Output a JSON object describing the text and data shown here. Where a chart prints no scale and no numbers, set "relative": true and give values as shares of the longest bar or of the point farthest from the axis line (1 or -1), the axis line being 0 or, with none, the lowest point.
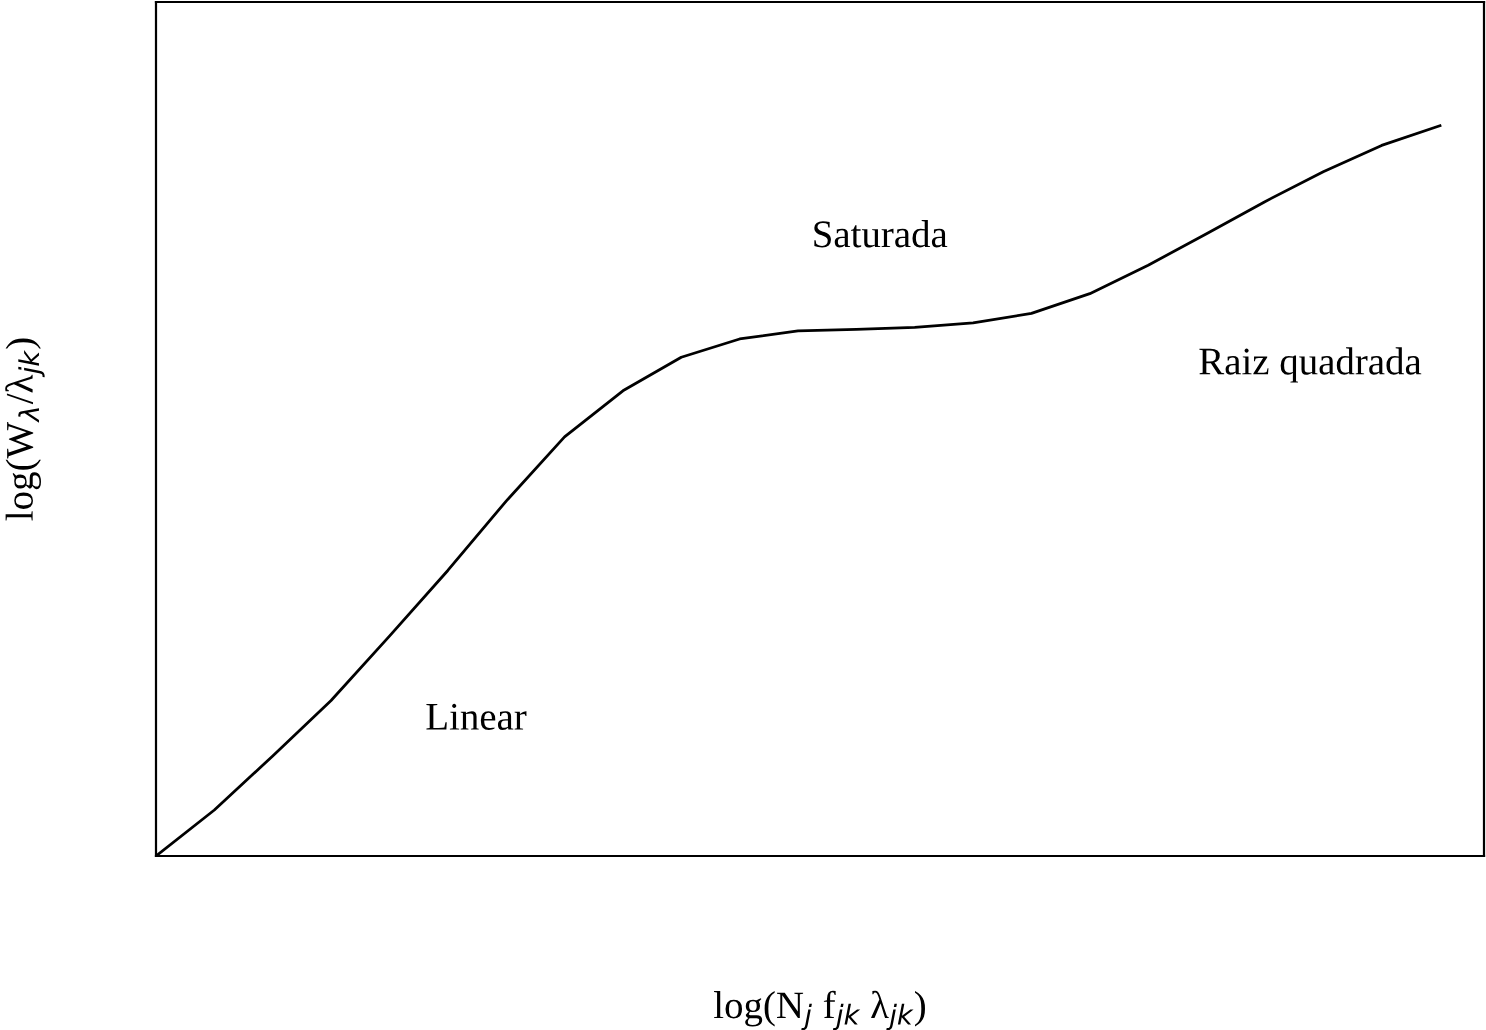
{
  "chart_data": {
    "type": "line",
    "relative": true,
    "xlabel": "log(N$_{j}$ f$_{jk}$ λ$_{jk}$)",
    "ylabel": "log(W$_{λ}$/λ$_{jk}$)",
    "annotations": [
      "Linear",
      "Saturada",
      "Raiz quadrada"
    ],
    "categories": [
      null,
      null,
      null,
      null,
      null,
      null,
      null,
      null,
      null,
      null,
      null,
      null,
      null,
      null,
      null,
      null,
      null,
      null,
      null,
      null,
      null,
      null,
      null
    ],
    "series": [
      {
        "color": "#000000",
        "values": [
          0,
          0.063,
          0.137,
          0.213,
          0.301,
          0.391,
          0.486,
          0.574,
          0.637,
          0.683,
          0.708,
          0.719,
          0.721,
          0.724,
          0.73,
          0.743,
          0.77,
          0.809,
          0.852,
          0.896,
          0.937,
          0.973,
          1.0
        ]
      }
    ],
    "grid": false,
    "legend": false,
    "marker": "none",
    "line_style": "solid"
  }
}
